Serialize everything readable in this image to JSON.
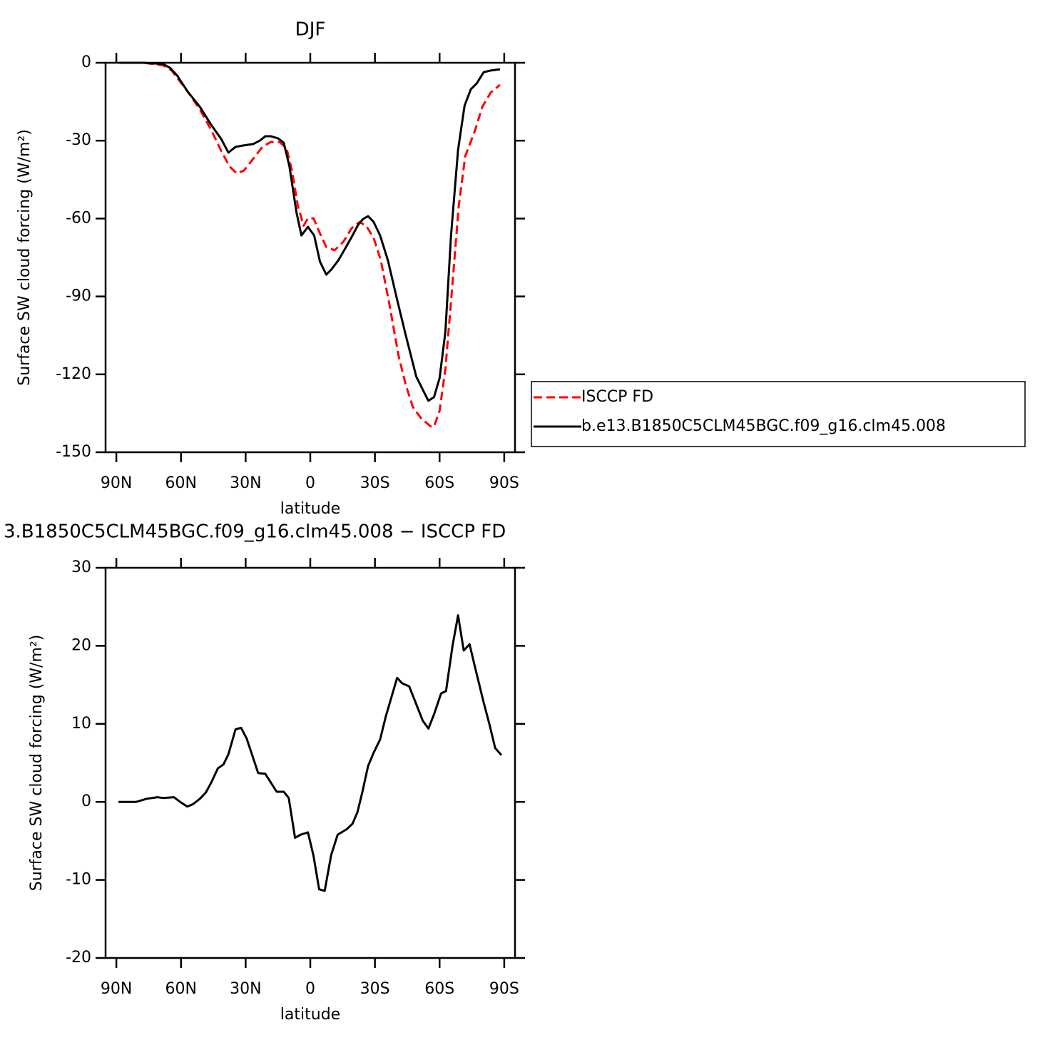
{
  "chart_data": [
    {
      "type": "line",
      "title": "DJF",
      "xlabel": "latitude",
      "ylabel": "Surface SW cloud forcing (W/m²)",
      "xlim": [
        95,
        -95
      ],
      "ylim": [
        -150,
        0
      ],
      "xticks": [
        {
          "value": 90,
          "label": "90N"
        },
        {
          "value": 60,
          "label": "60N"
        },
        {
          "value": 30,
          "label": "30N"
        },
        0,
        {
          "value": -30,
          "label": "30S"
        },
        {
          "value": -60,
          "label": "60S"
        },
        {
          "value": -90,
          "label": "90S"
        }
      ],
      "yticks": [
        -150,
        -120,
        -90,
        -60,
        -30,
        0
      ],
      "legend": "right",
      "series": [
        {
          "name": "ISCCP FD",
          "color": "#ff0000",
          "dash": true,
          "x": [
            88.7,
            77.5,
            68.3,
            64.3,
            57,
            51.2,
            45.9,
            41.3,
            37.4,
            34.1,
            30.8,
            26.5,
            22.2,
            18.3,
            14.3,
            11,
            8.4,
            5.8,
            3.1,
            1.1,
            -1.5,
            -4.1,
            -7.4,
            -11.3,
            -15.3,
            -19.2,
            -22.9,
            -26.1,
            -29.4,
            -32.7,
            -36.7,
            -41,
            -44.3,
            -47.6,
            -51.5,
            -55.8,
            -57.4,
            -60,
            -62.7,
            -65.3,
            -68.9,
            -71.9,
            -76.5,
            -79.8,
            -83.7,
            -88
          ],
          "values": [
            0,
            0,
            -1,
            -3,
            -11,
            -18,
            -26,
            -34,
            -40,
            -42.6,
            -41.5,
            -37,
            -32.4,
            -30.5,
            -30.5,
            -33,
            -42,
            -55,
            -62.8,
            -59.9,
            -59.9,
            -65,
            -71,
            -72.2,
            -69,
            -63.7,
            -61.3,
            -63,
            -67.5,
            -76,
            -93,
            -113,
            -124,
            -132.6,
            -137,
            -140,
            -140.2,
            -134,
            -118,
            -92,
            -55,
            -36,
            -26,
            -17,
            -11.5,
            -8.5
          ]
        },
        {
          "name": "b.e13.B1850C5CLM45BGC.f09_g16.clm45.008",
          "color": "#000000",
          "dash": false,
          "x": [
            88.7,
            77.5,
            68.3,
            65,
            61.7,
            57,
            51.2,
            45.9,
            41.3,
            38,
            34.7,
            31.4,
            26.5,
            23.2,
            20.9,
            18.3,
            15,
            12.3,
            9.7,
            6.4,
            4.1,
            1.1,
            -1.8,
            -4.5,
            -7.4,
            -9.7,
            -13,
            -16.3,
            -19.6,
            -22.2,
            -24.5,
            -26.8,
            -29.4,
            -32.4,
            -36,
            -40.3,
            -44.3,
            -49.2,
            -52.5,
            -54.8,
            -57.4,
            -60,
            -62.7,
            -65.3,
            -68.6,
            -71.6,
            -74.5,
            -77.2,
            -80.5,
            -83.7,
            -88
          ],
          "values": [
            0,
            0,
            -0.5,
            -2,
            -5,
            -11,
            -17,
            -24,
            -29.4,
            -34.6,
            -32.4,
            -31.9,
            -31.3,
            -29.9,
            -28.3,
            -28.3,
            -29.1,
            -30.8,
            -39.8,
            -57.7,
            -66.5,
            -63.2,
            -66.5,
            -76.6,
            -81.6,
            -79.7,
            -76.1,
            -71.4,
            -66.5,
            -62.4,
            -60.2,
            -59.1,
            -61.3,
            -66.5,
            -76.1,
            -91.2,
            -104.9,
            -120.9,
            -126.4,
            -130.2,
            -128.8,
            -121.4,
            -103.6,
            -66.5,
            -33.5,
            -16.5,
            -10.2,
            -8,
            -3.6,
            -3,
            -2.5
          ]
        }
      ]
    },
    {
      "type": "line",
      "title": "3.B1850C5CLM45BGC.f09_g16.clm45.008 − ISCCP FD",
      "xlabel": "latitude",
      "ylabel": "Surface SW cloud forcing (W/m²)",
      "xlim": [
        95,
        -95
      ],
      "ylim": [
        -20,
        30
      ],
      "xticks": [
        {
          "value": 90,
          "label": "90N"
        },
        {
          "value": 60,
          "label": "60N"
        },
        {
          "value": 30,
          "label": "30N"
        },
        0,
        {
          "value": -30,
          "label": "30S"
        },
        {
          "value": -60,
          "label": "60S"
        },
        {
          "value": -90,
          "label": "90S"
        }
      ],
      "yticks": [
        -20,
        -10,
        0,
        10,
        20,
        30
      ],
      "color": "#000000",
      "x": [
        89,
        80.8,
        75.9,
        70.9,
        68.3,
        63.3,
        60.4,
        57.1,
        54.5,
        51.2,
        48.5,
        45.9,
        42.9,
        40.3,
        38,
        34.7,
        32.1,
        29.5,
        24.2,
        20.9,
        15.6,
        12.3,
        10,
        7.1,
        4.4,
        1.1,
        -1.5,
        -4.1,
        -6.7,
        -9.7,
        -12.7,
        -16.9,
        -19.6,
        -21.9,
        -24.2,
        -26.8,
        -29.4,
        -32.4,
        -35,
        -40.3,
        -42.6,
        -45.9,
        -52.2,
        -54.8,
        -57.4,
        -60.7,
        -63,
        -66,
        -68.6,
        -71.2,
        -73.9,
        -76.5,
        -80.5,
        -83.1,
        -85.8,
        -88.7
      ],
      "values": [
        0,
        0,
        0.4,
        0.6,
        0.5,
        0.6,
        0,
        -0.6,
        -0.3,
        0.4,
        1.2,
        2.5,
        4.3,
        4.8,
        6.1,
        9.3,
        9.5,
        8.1,
        3.7,
        3.6,
        1.3,
        1.3,
        0.5,
        -4.6,
        -4.2,
        -3.9,
        -6.9,
        -11.2,
        -11.4,
        -6.8,
        -4.2,
        -3.5,
        -2.8,
        -1.3,
        1.3,
        4.6,
        6.3,
        8,
        10.9,
        15.9,
        15.2,
        14.8,
        10.4,
        9.4,
        11.2,
        13.9,
        14.2,
        20,
        23.9,
        19.4,
        20.2,
        17.2,
        12.7,
        10,
        6.9,
        6
      ]
    }
  ]
}
